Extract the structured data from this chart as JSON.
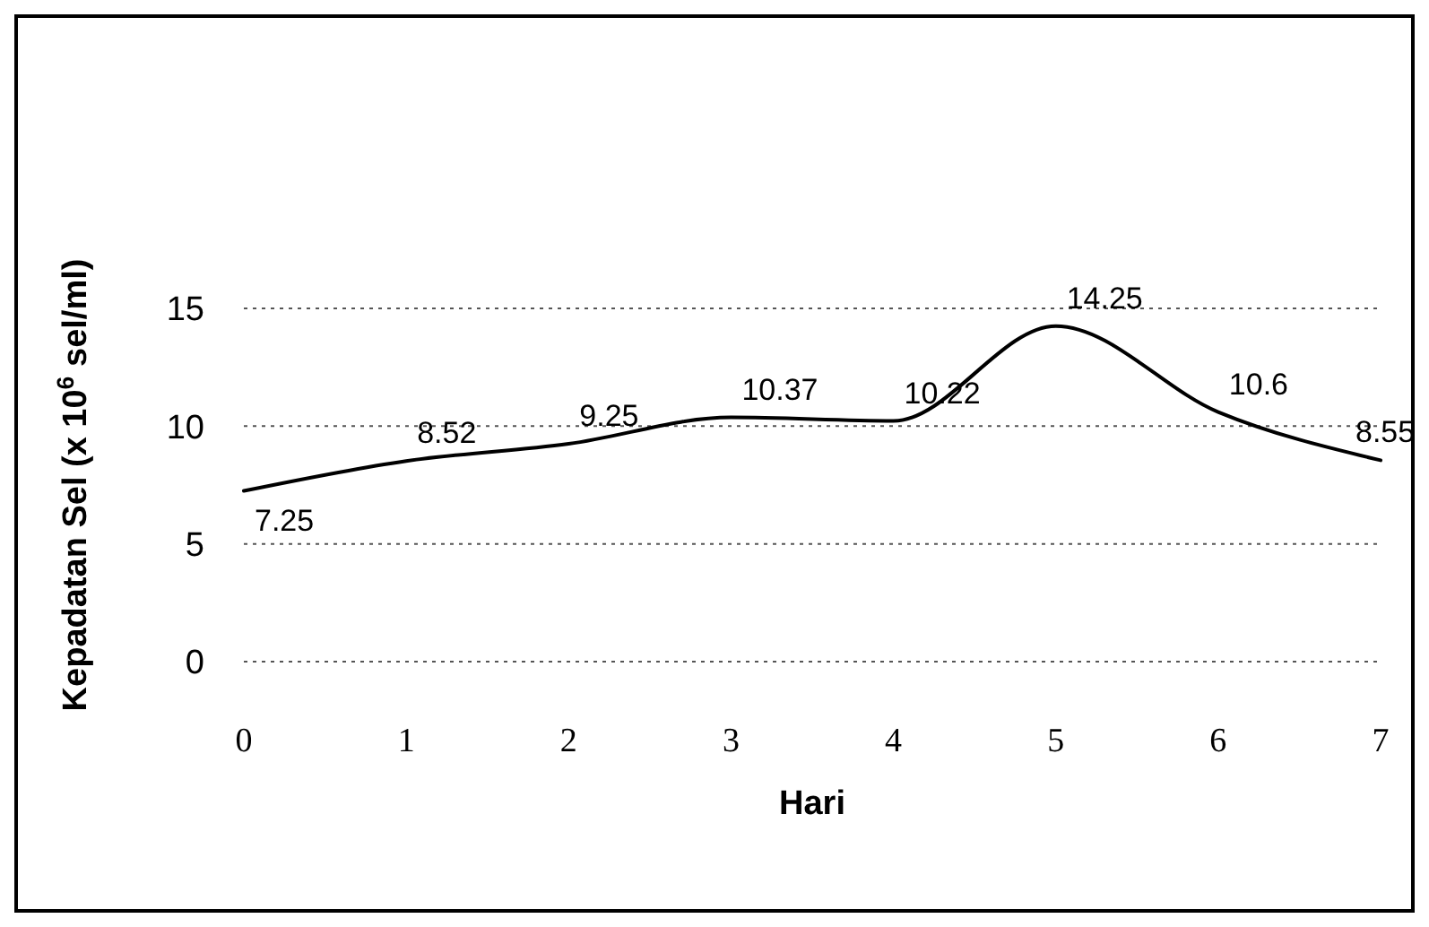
{
  "chart_data": {
    "type": "line",
    "xlabel": "Hari",
    "ylabel": "Kepadatan Sel (x 10$^{6}$ sel/ml)",
    "x": [
      0,
      1,
      2,
      3,
      4,
      5,
      6,
      7
    ],
    "series": [
      {
        "color": "#000000",
        "values": [
          7.25,
          8.52,
          9.25,
          10.37,
          10.22,
          14.25,
          10.6,
          8.55
        ]
      }
    ],
    "xlim": [
      0,
      7
    ],
    "xticks": [
      0,
      1,
      2,
      3,
      4,
      5,
      6,
      7
    ],
    "ylim": [
      0,
      15
    ],
    "yticks": [
      0,
      5,
      10,
      15
    ],
    "grid": "y",
    "marker": "none",
    "line_style": "solid",
    "data_labels": true
  }
}
